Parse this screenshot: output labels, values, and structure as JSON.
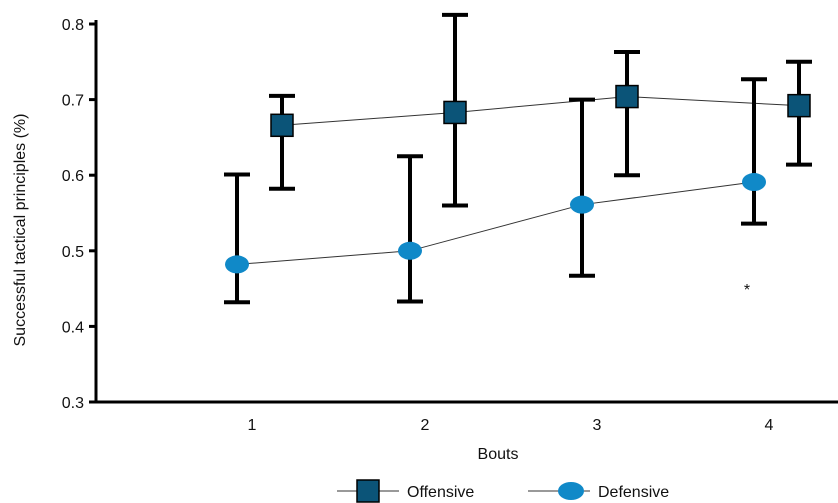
{
  "chart_data": {
    "type": "line",
    "xlabel": "Bouts",
    "ylabel": "Successful tactical principles (%)",
    "categories": [
      "1",
      "2",
      "3",
      "4"
    ],
    "ylim": [
      0.3,
      0.8
    ],
    "yticks": [
      "0.3",
      "0.4",
      "0.5",
      "0.6",
      "0.7",
      "0.8"
    ],
    "grid": false,
    "legend_position": "bottom",
    "series": [
      {
        "name": "Offensive",
        "marker": "square",
        "color": "#0b5478",
        "values": [
          0.666,
          0.683,
          0.704,
          0.692
        ],
        "error_low": [
          0.582,
          0.56,
          0.6,
          0.614
        ],
        "error_high": [
          0.705,
          0.812,
          0.763,
          0.75
        ]
      },
      {
        "name": "Defensive",
        "marker": "circle",
        "color": "#1089c8",
        "values": [
          0.482,
          0.5,
          0.561,
          0.591
        ],
        "error_low": [
          0.432,
          0.433,
          0.467,
          0.536
        ],
        "error_high": [
          0.601,
          0.625,
          0.7,
          0.727
        ]
      }
    ],
    "annotations": [
      {
        "text": "*",
        "category": "4",
        "y": 0.452
      }
    ]
  }
}
